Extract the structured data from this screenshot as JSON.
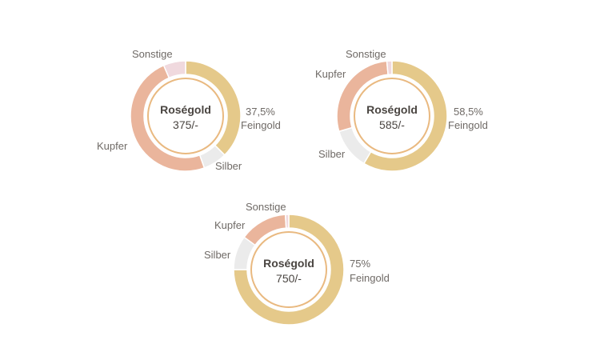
{
  "colors": {
    "Feingold": "#e5c98a",
    "Kupfer": "#eab59c",
    "Silber": "#ebebeb",
    "Sonstige": "#f0d9de",
    "inner_ring": "#e9b980"
  },
  "chart_data": [
    {
      "type": "pie",
      "title": "Roségold",
      "subtitle": "375/-",
      "values_percent": {
        "Feingold": 37.5,
        "Silber": 7,
        "Kupfer": 49,
        "Sonstige": 6.5
      },
      "labels": {
        "Feingold": {
          "value": "37,5%",
          "name": "Feingold"
        },
        "Silber": "Silber",
        "Kupfer": "Kupfer",
        "Sonstige": "Sonstige"
      }
    },
    {
      "type": "pie",
      "title": "Roségold",
      "subtitle": "585/-",
      "values_percent": {
        "Feingold": 58.5,
        "Silber": 12,
        "Kupfer": 28,
        "Sonstige": 1.5
      },
      "labels": {
        "Feingold": {
          "value": "58,5%",
          "name": "Feingold"
        },
        "Silber": "Silber",
        "Kupfer": "Kupfer",
        "Sonstige": "Sonstige"
      }
    },
    {
      "type": "pie",
      "title": "Roségold",
      "subtitle": "750/-",
      "values_percent": {
        "Feingold": 75,
        "Silber": 10,
        "Kupfer": 14,
        "Sonstige": 1
      },
      "labels": {
        "Feingold": {
          "value": "75%",
          "name": "Feingold"
        },
        "Silber": "Silber",
        "Kupfer": "Kupfer",
        "Sonstige": "Sonstige"
      }
    }
  ]
}
